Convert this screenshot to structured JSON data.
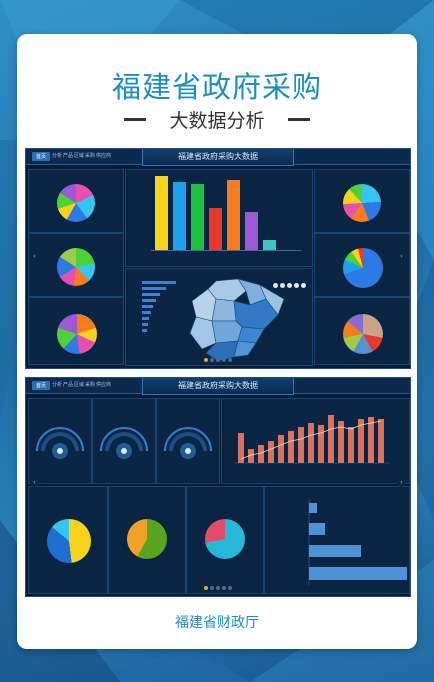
{
  "header": {
    "title": "福建省政府采购",
    "subtitle": "大数据分析"
  },
  "footer": {
    "org": "福建省财政厅"
  },
  "dashboard1": {
    "title": "福建省政府采购大数据",
    "nav": [
      "首页",
      "分析",
      "产品",
      "区域",
      "采购",
      "供应商"
    ],
    "colors": {
      "bg": "#071a33",
      "panel": "#0a2444",
      "border": "#16466f",
      "accent": "#2a6fb0"
    },
    "bars": {
      "colors": [
        "#f6d31c",
        "#1ea1e8",
        "#1fbf3f",
        "#e8392f",
        "#f57c1f",
        "#9b59d6",
        "#3bc7c3"
      ]
    },
    "map_control_icons": [
      "circle-icon",
      "circle-icon",
      "circle-icon",
      "circle-icon",
      "circle-icon"
    ]
  },
  "dashboard2": {
    "title": "福建省政府采购大数据",
    "nav": [
      "首页",
      "分析",
      "产品",
      "区域",
      "采购",
      "供应商"
    ],
    "colors": {
      "bar": "#d9735f",
      "line": "#e8e1d9",
      "hbar": "#4f93d6"
    }
  }
}
